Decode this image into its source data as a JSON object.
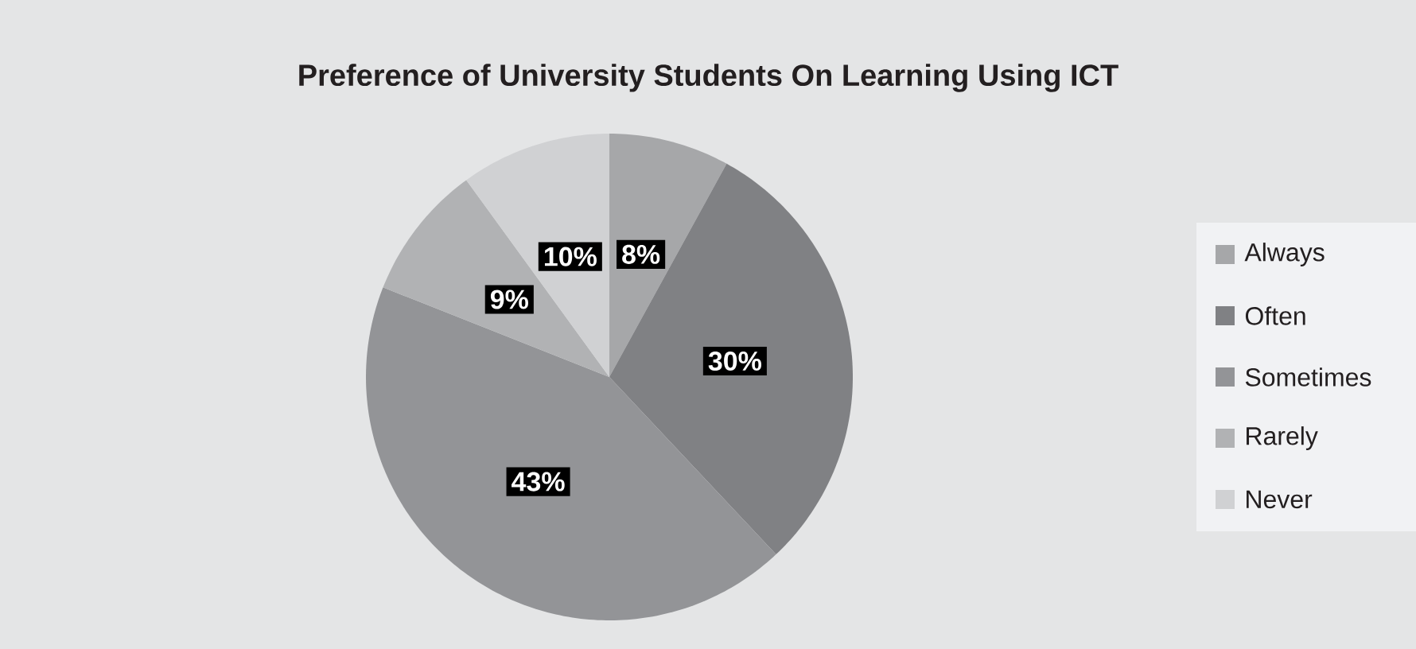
{
  "chart_data": {
    "type": "pie",
    "title": "Preference of University Students On Learning Using ICT",
    "categories": [
      "Always",
      "Often",
      "Sometimes",
      "Rarely",
      "Never"
    ],
    "values": [
      8,
      30,
      43,
      9,
      10
    ],
    "colors": [
      "#a6a7a9",
      "#808184",
      "#939497",
      "#b1b2b4",
      "#d0d1d3"
    ],
    "value_labels": [
      "8%",
      "30%",
      "43%",
      "9%",
      "10%"
    ],
    "legend": "right"
  }
}
